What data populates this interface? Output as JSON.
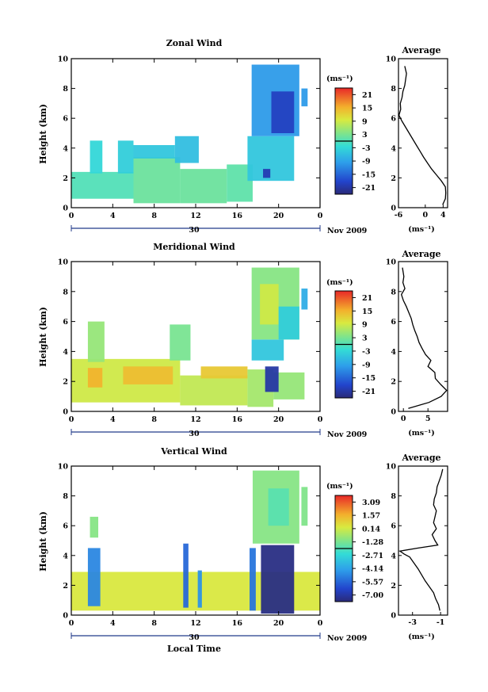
{
  "chart_data": [
    {
      "type": "heatmap",
      "title": "Zonal Wind",
      "ylabel": "Height (km)",
      "ylim": [
        0,
        10
      ],
      "xticks": [
        "0",
        "4",
        "8",
        "12",
        "16",
        "20",
        "0"
      ],
      "date_day": "30",
      "date_label": "Nov 2009",
      "colorbar": {
        "unit": "(ms⁻¹)",
        "ticks": [
          "21",
          "15",
          "9",
          "3",
          "-3",
          "-9",
          "-15",
          "-21"
        ],
        "range": [
          -24,
          24
        ]
      },
      "regions": [
        {
          "x": [
            0,
            6
          ],
          "y": [
            0.6,
            2.4
          ],
          "value": 0
        },
        {
          "x": [
            6,
            10.5
          ],
          "y": [
            0.3,
            3.4
          ],
          "value": 2
        },
        {
          "x": [
            10.5,
            15
          ],
          "y": [
            0.3,
            2.6
          ],
          "value": 2
        },
        {
          "x": [
            15,
            17.5
          ],
          "y": [
            0.4,
            2.9
          ],
          "value": 1
        },
        {
          "x": [
            1.8,
            3.0
          ],
          "y": [
            2.3,
            4.5
          ],
          "value": -3
        },
        {
          "x": [
            4.5,
            6
          ],
          "y": [
            2.3,
            4.5
          ],
          "value": -4
        },
        {
          "x": [
            6,
            10
          ],
          "y": [
            3.3,
            4.2
          ],
          "value": -5
        },
        {
          "x": [
            10,
            12.3
          ],
          "y": [
            3.0,
            4.8
          ],
          "value": -6
        },
        {
          "x": [
            17,
            21.5
          ],
          "y": [
            1.8,
            4.8
          ],
          "value": -5
        },
        {
          "x": [
            18.5,
            19.2
          ],
          "y": [
            2.0,
            2.6
          ],
          "value": -20
        },
        {
          "x": [
            17.4,
            22
          ],
          "y": [
            4.8,
            9.6
          ],
          "value": -10
        },
        {
          "x": [
            19.3,
            21.5
          ],
          "y": [
            5.0,
            7.8
          ],
          "value": -19
        },
        {
          "x": [
            22.2,
            22.8
          ],
          "y": [
            6.8,
            8.0
          ],
          "value": -10
        }
      ],
      "profile": {
        "title": "Average",
        "xlabel": "(ms⁻¹)",
        "xlim": [
          -6,
          5
        ],
        "xticks": [
          -6,
          0,
          4
        ],
        "h": [
          0.2,
          0.6,
          1.0,
          1.4,
          1.8,
          2.2,
          2.6,
          3.0,
          3.4,
          3.8,
          4.2,
          4.6,
          5.0,
          5.4,
          5.8,
          6.2,
          6.6,
          7.0,
          7.4,
          7.8,
          8.2,
          8.6,
          9.0,
          9.5
        ],
        "v": [
          3.9,
          4.5,
          4.6,
          4.5,
          3.6,
          2.5,
          1.4,
          0.5,
          -0.4,
          -1.2,
          -2.0,
          -2.8,
          -3.6,
          -4.4,
          -5.2,
          -5.9,
          -5.5,
          -5.6,
          -5.2,
          -5.0,
          -4.6,
          -4.4,
          -4.2,
          -4.6
        ]
      }
    },
    {
      "type": "heatmap",
      "title": "Meridional Wind",
      "ylabel": "Height (km)",
      "ylim": [
        0,
        10
      ],
      "xticks": [
        "0",
        "4",
        "8",
        "12",
        "16",
        "20",
        "0"
      ],
      "date_day": "30",
      "date_label": "Nov 2009",
      "colorbar": {
        "unit": "(ms⁻¹)",
        "ticks": [
          "21",
          "15",
          "9",
          "3",
          "-3",
          "-9",
          "-15",
          "-21"
        ],
        "range": [
          -24,
          24
        ]
      },
      "regions": [
        {
          "x": [
            0,
            10.5
          ],
          "y": [
            0.6,
            3.5
          ],
          "value": 9
        },
        {
          "x": [
            1.6,
            3.0
          ],
          "y": [
            1.6,
            2.9
          ],
          "value": 15
        },
        {
          "x": [
            5,
            9.8
          ],
          "y": [
            1.8,
            3.0
          ],
          "value": 14
        },
        {
          "x": [
            10.5,
            17
          ],
          "y": [
            0.4,
            2.4
          ],
          "value": 8
        },
        {
          "x": [
            12.5,
            17
          ],
          "y": [
            2.2,
            3.0
          ],
          "value": 13
        },
        {
          "x": [
            17,
            19.5
          ],
          "y": [
            0.3,
            2.8
          ],
          "value": 6
        },
        {
          "x": [
            19.5,
            22.5
          ],
          "y": [
            0.8,
            2.6
          ],
          "value": 5
        },
        {
          "x": [
            18.7,
            20.0
          ],
          "y": [
            1.3,
            3.0
          ],
          "value": -21
        },
        {
          "x": [
            1.6,
            3.2
          ],
          "y": [
            3.3,
            6.0
          ],
          "value": 5
        },
        {
          "x": [
            9.5,
            11.5
          ],
          "y": [
            3.4,
            5.8
          ],
          "value": 3
        },
        {
          "x": [
            17.4,
            20.5
          ],
          "y": [
            3.4,
            4.8
          ],
          "value": -5
        },
        {
          "x": [
            17.4,
            22
          ],
          "y": [
            4.8,
            9.6
          ],
          "value": 4
        },
        {
          "x": [
            18.2,
            20
          ],
          "y": [
            5.8,
            8.5
          ],
          "value": 9
        },
        {
          "x": [
            20,
            22
          ],
          "y": [
            4.8,
            7.0
          ],
          "value": -4
        },
        {
          "x": [
            22.2,
            22.8
          ],
          "y": [
            6.8,
            8.2
          ],
          "value": -8
        }
      ],
      "profile": {
        "title": "Average",
        "xlabel": "(ms⁻¹)",
        "xlim": [
          -1,
          9
        ],
        "xticks": [
          0,
          5
        ],
        "h": [
          0.2,
          0.6,
          1.0,
          1.4,
          1.8,
          2.2,
          2.6,
          3.0,
          3.4,
          3.8,
          4.2,
          4.6,
          5.0,
          5.4,
          5.8,
          6.2,
          6.6,
          7.0,
          7.4,
          7.8,
          8.2,
          8.6,
          9.0,
          9.6
        ],
        "v": [
          1.0,
          5.2,
          7.7,
          8.8,
          7.6,
          6.5,
          6.4,
          5.0,
          5.6,
          4.5,
          3.8,
          3.2,
          2.8,
          2.3,
          1.9,
          1.6,
          1.1,
          0.6,
          0.0,
          -0.4,
          0.3,
          -0.1,
          0.1,
          -0.2
        ]
      }
    },
    {
      "type": "heatmap",
      "title": "Vertical Wind",
      "ylabel": "Height (km)",
      "xlabel": "Local Time",
      "ylim": [
        0,
        10
      ],
      "xticks": [
        "0",
        "4",
        "8",
        "12",
        "16",
        "20",
        "0"
      ],
      "date_day": "30",
      "date_label": "Nov 2009",
      "colorbar": {
        "unit": "(ms⁻¹)",
        "ticks": [
          "3.09",
          "1.57",
          "0.14",
          "-1.28",
          "-2.71",
          "-4.14",
          "-5.57",
          "-7.00"
        ],
        "range": [
          -7.7,
          3.8
        ]
      },
      "regions": [
        {
          "x": [
            0,
            24
          ],
          "y": [
            0.3,
            2.9
          ],
          "value": 0.4
        },
        {
          "x": [
            1.6,
            2.8
          ],
          "y": [
            0.6,
            4.5
          ],
          "value": -4.8
        },
        {
          "x": [
            10.8,
            11.3
          ],
          "y": [
            0.5,
            4.8
          ],
          "value": -5.5
        },
        {
          "x": [
            12.2,
            12.6
          ],
          "y": [
            0.5,
            3.0
          ],
          "value": -4.5
        },
        {
          "x": [
            17.2,
            17.8
          ],
          "y": [
            0.3,
            4.5
          ],
          "value": -5.2
        },
        {
          "x": [
            18.3,
            21.5
          ],
          "y": [
            0.1,
            4.7
          ],
          "value": -7.5
        },
        {
          "x": [
            17.5,
            22
          ],
          "y": [
            4.8,
            9.7
          ],
          "value": -1.0
        },
        {
          "x": [
            19,
            21
          ],
          "y": [
            6,
            8.5
          ],
          "value": -1.8
        },
        {
          "x": [
            22.2,
            22.8
          ],
          "y": [
            6.0,
            8.6
          ],
          "value": -1.1
        },
        {
          "x": [
            1.8,
            2.6
          ],
          "y": [
            5.2,
            6.6
          ],
          "value": -1.0
        }
      ],
      "profile": {
        "title": "Average",
        "xlabel": "(ms⁻¹)",
        "xlim": [
          -4,
          -0.5
        ],
        "xticks": [
          -3,
          -1
        ],
        "h": [
          0.3,
          0.7,
          1.1,
          1.5,
          1.9,
          2.3,
          2.7,
          3.1,
          3.5,
          3.9,
          4.1,
          4.3,
          4.5,
          4.7,
          5.0,
          5.4,
          5.8,
          6.2,
          6.6,
          7.0,
          7.4,
          7.8,
          8.2,
          8.6,
          9.0,
          9.4,
          9.8
        ],
        "v": [
          -1.05,
          -1.15,
          -1.35,
          -1.5,
          -1.8,
          -2.1,
          -2.35,
          -2.6,
          -2.9,
          -3.2,
          -3.6,
          -3.9,
          -2.6,
          -1.2,
          -1.4,
          -1.6,
          -1.3,
          -1.5,
          -1.4,
          -1.3,
          -1.5,
          -1.45,
          -1.3,
          -1.25,
          -1.1,
          -0.95,
          -0.85
        ]
      }
    }
  ]
}
